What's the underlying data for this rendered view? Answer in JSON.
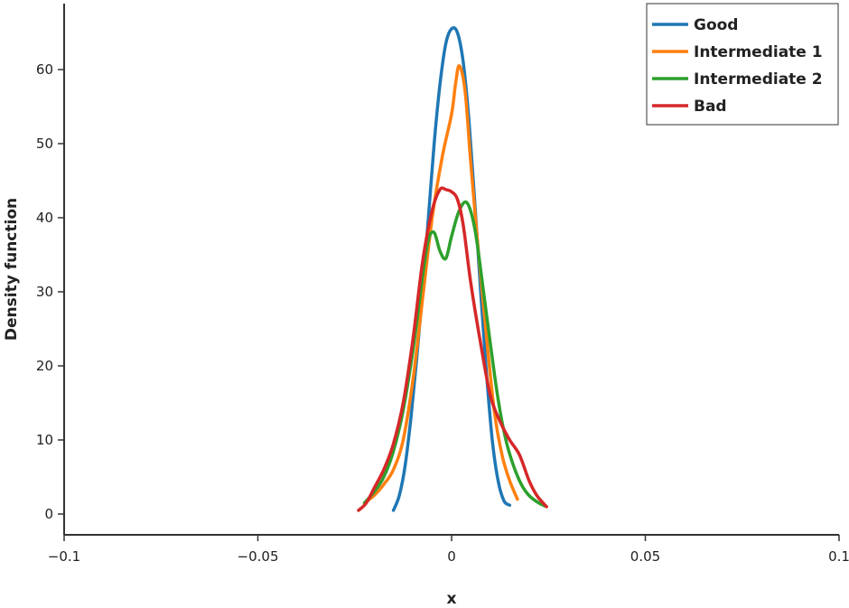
{
  "chart_data": {
    "type": "line",
    "title": "",
    "xlabel": "x",
    "ylabel": "Density function",
    "xlim": [
      -0.1,
      0.1
    ],
    "ylim": [
      0,
      70
    ],
    "xticks": [
      -0.1,
      -0.05,
      0,
      0.05,
      0.1
    ],
    "xtick_labels": [
      "−0.1",
      "−0.05",
      "0",
      "0.05",
      "0.1"
    ],
    "yticks": [
      0,
      10,
      20,
      30,
      40,
      50,
      60
    ],
    "ytick_labels": [
      "0",
      "10",
      "20",
      "30",
      "40",
      "50",
      "60"
    ],
    "grid": false,
    "legend_position": "top-right",
    "series": [
      {
        "name": "Good",
        "color": "#1f77b4",
        "x": [
          -0.015,
          -0.0135,
          -0.012,
          -0.0105,
          -0.009,
          -0.0075,
          -0.006,
          -0.0045,
          -0.003,
          -0.0015,
          0.0,
          0.0015,
          0.003,
          0.0045,
          0.006,
          0.0075,
          0.009,
          0.0105,
          0.012,
          0.0135,
          0.015
        ],
        "y": [
          0.5,
          2.5,
          6.5,
          13,
          21,
          30,
          40,
          50,
          58,
          63.5,
          65.5,
          65,
          61,
          53,
          42,
          30,
          19,
          10,
          4.5,
          1.8,
          1.2
        ]
      },
      {
        "name": "Intermediate 1",
        "color": "#ff7f0e",
        "x": [
          -0.0225,
          -0.02,
          -0.0175,
          -0.015,
          -0.0125,
          -0.01,
          -0.0075,
          -0.005,
          -0.0025,
          0.0,
          0.001,
          0.002,
          0.0035,
          0.005,
          0.007,
          0.009,
          0.011,
          0.013,
          0.015,
          0.017
        ],
        "y": [
          1.5,
          2.5,
          4,
          6,
          10,
          18,
          29,
          40,
          48,
          54,
          58,
          60.5,
          57,
          47,
          35,
          24,
          14,
          8,
          4.5,
          2
        ]
      },
      {
        "name": "Intermediate 2",
        "color": "#2ca02c",
        "x": [
          -0.0225,
          -0.02,
          -0.0175,
          -0.015,
          -0.0125,
          -0.01,
          -0.0075,
          -0.006,
          -0.0045,
          -0.003,
          -0.0015,
          0.0,
          0.002,
          0.004,
          0.006,
          0.008,
          0.01,
          0.012,
          0.014,
          0.016,
          0.018,
          0.02,
          0.0225,
          0.0245
        ],
        "y": [
          1.5,
          3,
          5,
          8.5,
          14,
          22,
          32,
          37,
          38,
          35.5,
          34.5,
          37.5,
          41,
          42,
          38.5,
          31,
          23,
          15.5,
          10,
          6.5,
          4,
          2.5,
          1.5,
          1
        ]
      },
      {
        "name": "Bad",
        "color": "#d62728",
        "x": [
          -0.024,
          -0.022,
          -0.02,
          -0.0175,
          -0.015,
          -0.0125,
          -0.01,
          -0.0075,
          -0.005,
          -0.003,
          -0.0015,
          0.0,
          0.0015,
          0.003,
          0.005,
          0.0075,
          0.01,
          0.0125,
          0.015,
          0.0175,
          0.02,
          0.022,
          0.0245
        ],
        "y": [
          0.5,
          1.5,
          3.5,
          6,
          9.5,
          15,
          23.5,
          34,
          41,
          43.8,
          43.8,
          43.5,
          42.5,
          39,
          31,
          23,
          16,
          12.5,
          10,
          8,
          4.5,
          2.5,
          1
        ]
      }
    ]
  }
}
